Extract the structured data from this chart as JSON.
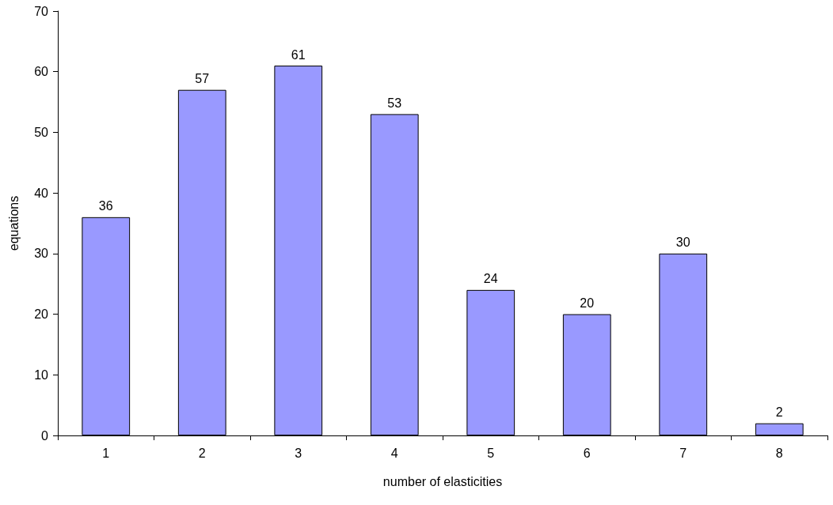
{
  "chart_data": {
    "type": "bar",
    "xlabel": "number of elasticities",
    "ylabel": "equations",
    "categories": [
      "1",
      "2",
      "3",
      "4",
      "5",
      "6",
      "7",
      "8"
    ],
    "values": [
      36,
      57,
      61,
      53,
      24,
      20,
      30,
      2
    ],
    "color": "#9999ff",
    "ylim": [
      0,
      70
    ],
    "yticks": [
      0,
      10,
      20,
      30,
      40,
      50,
      60,
      70
    ],
    "grid": false,
    "data_labels": true
  }
}
